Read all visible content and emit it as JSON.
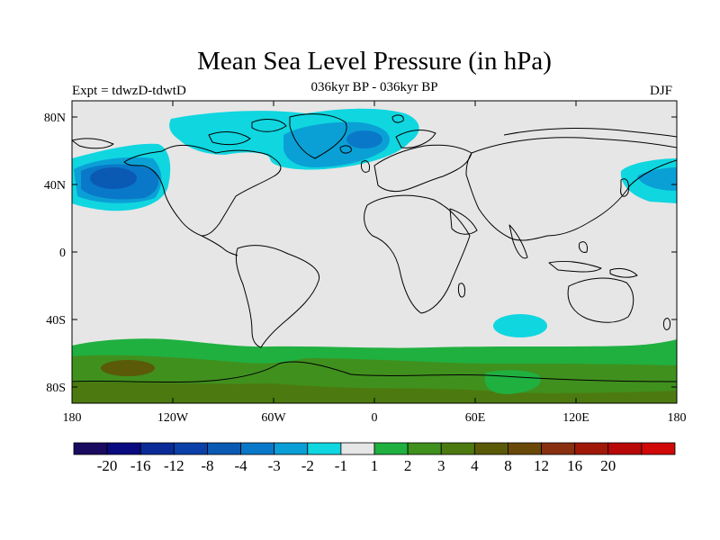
{
  "title": "Mean Sea Level Pressure (in hPa)",
  "left_label": "Expt = tdwzD-tdwtD",
  "center_label": "036kyr BP - 036kyr BP",
  "right_label": "DJF",
  "y_ticks": [
    "80N",
    "40N",
    "0",
    "40S",
    "80S"
  ],
  "x_ticks": [
    "180",
    "120W",
    "60W",
    "0",
    "60E",
    "120E",
    "180"
  ],
  "colorbar": {
    "colors": [
      "#1a0a60",
      "#0a0a80",
      "#0a2a98",
      "#0a40a8",
      "#0a5ab4",
      "#0a78c8",
      "#0a9ed6",
      "#10d6e0",
      "#e6e6e6",
      "#20b040",
      "#40901e",
      "#4c7a10",
      "#5a5a08",
      "#6a4808",
      "#883010",
      "#a01808",
      "#b80808",
      "#d00808"
    ],
    "labels": [
      "-20",
      "-16",
      "-12",
      "-8",
      "-4",
      "-3",
      "-2",
      "-1",
      "1",
      "2",
      "3",
      "4",
      "8",
      "12",
      "16",
      "20"
    ]
  },
  "map_colors": {
    "background": "#e6e6e6",
    "neg1": "#10d6e0",
    "neg2": "#0aa0d6",
    "neg3": "#0a78c8",
    "neg4": "#0a5ab4",
    "pos1": "#20b040",
    "pos2": "#40901e",
    "pos3": "#4c7a10",
    "pos4": "#5a5a08",
    "coast": "#000000"
  }
}
